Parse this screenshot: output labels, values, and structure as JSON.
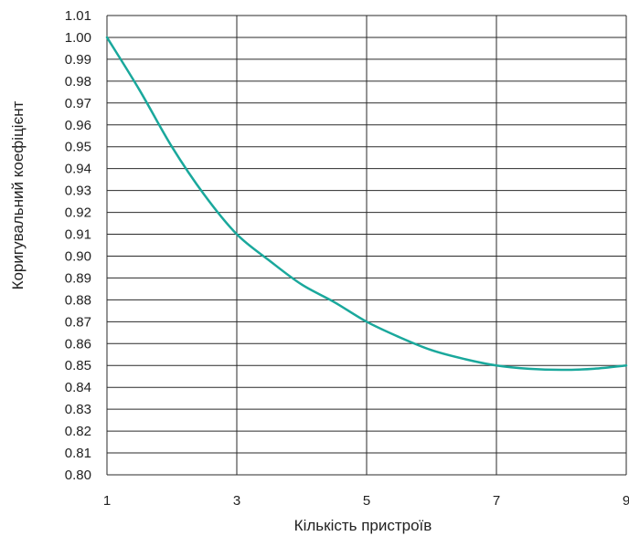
{
  "chart_data": {
    "type": "line",
    "title": "",
    "xlabel": "Кількість пристроїв",
    "ylabel": "Коригувальний коефіцієнт",
    "xlim": [
      1,
      9
    ],
    "ylim": [
      0.8,
      1.01
    ],
    "x_ticks": [
      "1",
      "3",
      "5",
      "7",
      "9"
    ],
    "y_ticks": [
      "0.80",
      "0.81",
      "0.82",
      "0.83",
      "0.84",
      "0.85",
      "0.86",
      "0.87",
      "0.88",
      "0.89",
      "0.90",
      "0.91",
      "0.92",
      "0.93",
      "0.94",
      "0.95",
      "0.96",
      "0.97",
      "0.98",
      "0.99",
      "1.00",
      "1.01"
    ],
    "grid": true,
    "series": [
      {
        "color": "#1aa89c",
        "x": [
          1,
          1.5,
          2,
          2.5,
          3,
          3.5,
          4,
          4.5,
          5,
          5.5,
          6,
          6.5,
          7,
          7.5,
          8,
          8.5,
          9
        ],
        "y": [
          1.0,
          0.976,
          0.95,
          0.928,
          0.91,
          0.898,
          0.887,
          0.879,
          0.87,
          0.863,
          0.857,
          0.853,
          0.85,
          0.8485,
          0.848,
          0.8485,
          0.85
        ]
      }
    ]
  }
}
